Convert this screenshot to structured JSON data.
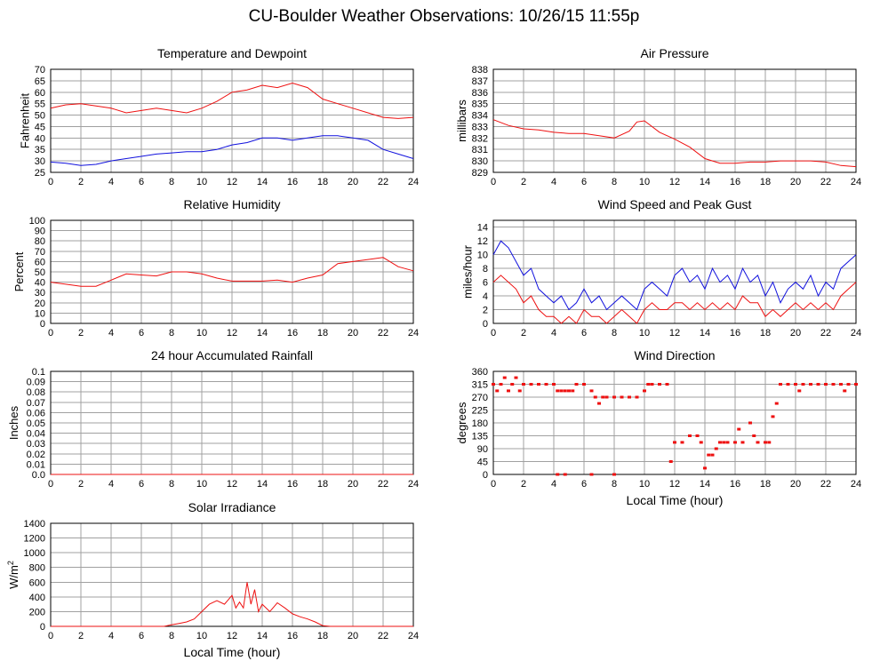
{
  "page_title": "CU-Boulder Weather Observations: 10/26/15 11:55p",
  "colors": {
    "red": "#ee1111",
    "blue": "#1111dd"
  },
  "chart_data": [
    {
      "id": "temp",
      "type": "line",
      "title": "Temperature and Dewpoint",
      "ylabel": "Fahrenheit",
      "xlabel": "",
      "xlim": [
        0,
        24
      ],
      "ylim": [
        25,
        70
      ],
      "xticks": [
        0,
        2,
        4,
        6,
        8,
        10,
        12,
        14,
        16,
        18,
        20,
        22,
        24
      ],
      "yticks": [
        25,
        30,
        35,
        40,
        45,
        50,
        55,
        60,
        65,
        70
      ],
      "tick_labels_x": [
        "0",
        "2",
        "4",
        "6",
        "8",
        "10",
        "12",
        "14",
        "16",
        "18",
        "20",
        "22",
        "24"
      ],
      "tick_labels_y": [
        "25",
        "30",
        "35",
        "40",
        "45",
        "50",
        "55",
        "60",
        "65",
        "70"
      ],
      "grid": true,
      "series": [
        {
          "color": "#ee1111",
          "style": "line",
          "x": [
            0,
            1,
            2,
            3,
            4,
            5,
            6,
            7,
            8,
            9,
            10,
            11,
            12,
            13,
            14,
            15,
            16,
            17,
            18,
            19,
            20,
            21,
            22,
            23,
            24
          ],
          "y": [
            53,
            54.5,
            55,
            54,
            53,
            51,
            52,
            53,
            52,
            51,
            53,
            56,
            60,
            61,
            63,
            62,
            64,
            62,
            57,
            55,
            53,
            51,
            49,
            48.5,
            49
          ]
        },
        {
          "color": "#1111dd",
          "style": "line",
          "x": [
            0,
            1,
            2,
            3,
            4,
            5,
            6,
            7,
            8,
            9,
            10,
            11,
            12,
            13,
            14,
            15,
            16,
            17,
            18,
            19,
            20,
            21,
            22,
            23,
            24
          ],
          "y": [
            29.5,
            29,
            28,
            28.5,
            30,
            31,
            32,
            33,
            33.5,
            34,
            34,
            35,
            37,
            38,
            40,
            40,
            39,
            40,
            41,
            41,
            40,
            39,
            35,
            33,
            31
          ]
        }
      ]
    },
    {
      "id": "pressure",
      "type": "line",
      "title": "Air Pressure",
      "ylabel": "millibars",
      "xlabel": "",
      "xlim": [
        0,
        24
      ],
      "ylim": [
        829,
        838
      ],
      "xticks": [
        0,
        2,
        4,
        6,
        8,
        10,
        12,
        14,
        16,
        18,
        20,
        22,
        24
      ],
      "yticks": [
        829,
        830,
        831,
        832,
        833,
        834,
        835,
        836,
        837,
        838
      ],
      "tick_labels_x": [
        "0",
        "2",
        "4",
        "6",
        "8",
        "10",
        "12",
        "14",
        "16",
        "18",
        "20",
        "22",
        "24"
      ],
      "tick_labels_y": [
        "829",
        "830",
        "831",
        "832",
        "833",
        "834",
        "835",
        "836",
        "837",
        "838"
      ],
      "grid": true,
      "series": [
        {
          "color": "#ee1111",
          "style": "line",
          "x": [
            0,
            1,
            2,
            3,
            4,
            5,
            6,
            7,
            8,
            9,
            9.5,
            10,
            11,
            12,
            13,
            14,
            15,
            16,
            17,
            18,
            19,
            20,
            21,
            22,
            23,
            24
          ],
          "y": [
            833.6,
            833.1,
            832.8,
            832.7,
            832.5,
            832.4,
            832.4,
            832.2,
            832,
            832.6,
            833.4,
            833.5,
            832.5,
            831.9,
            831.2,
            830.2,
            829.8,
            829.8,
            829.9,
            829.9,
            830,
            830,
            830,
            829.9,
            829.6,
            829.5
          ]
        }
      ]
    },
    {
      "id": "humidity",
      "type": "line",
      "title": "Relative Humidity",
      "ylabel": "Percent",
      "xlabel": "",
      "xlim": [
        0,
        24
      ],
      "ylim": [
        0,
        100
      ],
      "xticks": [
        0,
        2,
        4,
        6,
        8,
        10,
        12,
        14,
        16,
        18,
        20,
        22,
        24
      ],
      "yticks": [
        0,
        10,
        20,
        30,
        40,
        50,
        60,
        70,
        80,
        90,
        100
      ],
      "tick_labels_x": [
        "0",
        "2",
        "4",
        "6",
        "8",
        "10",
        "12",
        "14",
        "16",
        "18",
        "20",
        "22",
        "24"
      ],
      "tick_labels_y": [
        "0",
        "10",
        "20",
        "30",
        "40",
        "50",
        "60",
        "70",
        "80",
        "90",
        "100"
      ],
      "grid": true,
      "series": [
        {
          "color": "#ee1111",
          "style": "line",
          "x": [
            0,
            1,
            2,
            3,
            4,
            5,
            6,
            7,
            8,
            9,
            10,
            11,
            12,
            13,
            14,
            15,
            16,
            17,
            18,
            19,
            20,
            21,
            22,
            23,
            24
          ],
          "y": [
            40,
            38,
            36,
            36,
            42,
            48,
            47,
            46,
            50,
            50,
            48,
            44,
            41,
            41,
            41,
            42,
            40,
            44,
            47,
            58,
            60,
            62,
            64,
            55,
            51
          ]
        }
      ]
    },
    {
      "id": "wind",
      "type": "line",
      "title": "Wind Speed and Peak Gust",
      "ylabel": "miles/hour",
      "xlabel": "",
      "xlim": [
        0,
        24
      ],
      "ylim": [
        0,
        15
      ],
      "xticks": [
        0,
        2,
        4,
        6,
        8,
        10,
        12,
        14,
        16,
        18,
        20,
        22,
        24
      ],
      "yticks": [
        0,
        2,
        4,
        6,
        8,
        10,
        12,
        14
      ],
      "tick_labels_x": [
        "0",
        "2",
        "4",
        "6",
        "8",
        "10",
        "12",
        "14",
        "16",
        "18",
        "20",
        "22",
        "24"
      ],
      "tick_labels_y": [
        "0",
        "2",
        "4",
        "6",
        "8",
        "10",
        "12",
        "14"
      ],
      "grid": true,
      "series": [
        {
          "color": "#1111dd",
          "style": "line",
          "x": [
            0,
            0.5,
            1,
            1.5,
            2,
            2.5,
            3,
            3.5,
            4,
            4.5,
            5,
            5.5,
            6,
            6.5,
            7,
            7.5,
            8,
            8.5,
            9,
            9.5,
            10,
            10.5,
            11,
            11.5,
            12,
            12.5,
            13,
            13.5,
            14,
            14.5,
            15,
            15.5,
            16,
            16.5,
            17,
            17.5,
            18,
            18.5,
            19,
            19.5,
            20,
            20.5,
            21,
            21.5,
            22,
            22.5,
            23,
            23.5,
            24
          ],
          "y": [
            10,
            12,
            11,
            9,
            7,
            8,
            5,
            4,
            3,
            4,
            2,
            3,
            5,
            3,
            4,
            2,
            3,
            4,
            3,
            2,
            5,
            6,
            5,
            4,
            7,
            8,
            6,
            7,
            5,
            8,
            6,
            7,
            5,
            8,
            6,
            7,
            4,
            6,
            3,
            5,
            6,
            5,
            7,
            4,
            6,
            5,
            8,
            9,
            10
          ]
        },
        {
          "color": "#ee1111",
          "style": "line",
          "x": [
            0,
            0.5,
            1,
            1.5,
            2,
            2.5,
            3,
            3.5,
            4,
            4.5,
            5,
            5.5,
            6,
            6.5,
            7,
            7.5,
            8,
            8.5,
            9,
            9.5,
            10,
            10.5,
            11,
            11.5,
            12,
            12.5,
            13,
            13.5,
            14,
            14.5,
            15,
            15.5,
            16,
            16.5,
            17,
            17.5,
            18,
            18.5,
            19,
            19.5,
            20,
            20.5,
            21,
            21.5,
            22,
            22.5,
            23,
            23.5,
            24
          ],
          "y": [
            6,
            7,
            6,
            5,
            3,
            4,
            2,
            1,
            1,
            0,
            1,
            0,
            2,
            1,
            1,
            0,
            1,
            2,
            1,
            0,
            2,
            3,
            2,
            2,
            3,
            3,
            2,
            3,
            2,
            3,
            2,
            3,
            2,
            4,
            3,
            3,
            1,
            2,
            1,
            2,
            3,
            2,
            3,
            2,
            3,
            2,
            4,
            5,
            6
          ]
        }
      ]
    },
    {
      "id": "rain",
      "type": "line",
      "title": "24 hour Accumulated Rainfall",
      "ylabel": "Inches",
      "xlabel": "",
      "xlim": [
        0,
        24
      ],
      "ylim": [
        0,
        0.1
      ],
      "xticks": [
        0,
        2,
        4,
        6,
        8,
        10,
        12,
        14,
        16,
        18,
        20,
        22,
        24
      ],
      "yticks": [
        0,
        0.01,
        0.02,
        0.03,
        0.04,
        0.05,
        0.06,
        0.07,
        0.08,
        0.09,
        0.1
      ],
      "tick_labels_x": [
        "0",
        "2",
        "4",
        "6",
        "8",
        "10",
        "12",
        "14",
        "16",
        "18",
        "20",
        "22",
        "24"
      ],
      "tick_labels_y": [
        "0.0",
        "0.01",
        "0.02",
        "0.03",
        "0.04",
        "0.05",
        "0.06",
        "0.07",
        "0.08",
        "0.09",
        "0.1"
      ],
      "grid": true,
      "series": [
        {
          "color": "#ee1111",
          "style": "line",
          "x": [
            0,
            24
          ],
          "y": [
            0,
            0
          ]
        }
      ]
    },
    {
      "id": "direction",
      "type": "scatter",
      "title": "Wind Direction",
      "ylabel": "degrees",
      "xlabel": "Local Time (hour)",
      "xlim": [
        0,
        24
      ],
      "ylim": [
        0,
        360
      ],
      "xticks": [
        0,
        2,
        4,
        6,
        8,
        10,
        12,
        14,
        16,
        18,
        20,
        22,
        24
      ],
      "yticks": [
        0,
        45,
        90,
        135,
        180,
        225,
        270,
        315,
        360
      ],
      "tick_labels_x": [
        "0",
        "2",
        "4",
        "6",
        "8",
        "10",
        "12",
        "14",
        "16",
        "18",
        "20",
        "22",
        "24"
      ],
      "tick_labels_y": [
        "0",
        "45",
        "90",
        "135",
        "180",
        "225",
        "270",
        "315",
        "360"
      ],
      "grid": true,
      "series": [
        {
          "color": "#ee1111",
          "style": "scatter",
          "x": [
            0,
            0.25,
            0.5,
            0.75,
            1,
            1.25,
            1.5,
            1.75,
            2,
            2.5,
            3,
            3.5,
            4,
            4.25,
            4.5,
            4.75,
            5,
            5.25,
            5.5,
            6,
            6.5,
            6.75,
            7,
            7.25,
            7.5,
            8,
            8.5,
            9,
            9.5,
            10,
            10.25,
            10.5,
            11,
            11.5,
            11.75,
            12,
            12.5,
            13,
            13.5,
            13.75,
            14,
            14.25,
            14.5,
            14.75,
            15,
            15.25,
            15.5,
            16,
            16.25,
            16.5,
            17,
            17.25,
            17.5,
            18,
            18.25,
            18.5,
            18.75,
            19,
            19.5,
            20,
            20.25,
            20.5,
            21,
            21.5,
            22,
            22.5,
            23,
            23.25,
            23.5,
            24,
            4.25,
            4.75,
            6.5,
            8
          ],
          "y": [
            315,
            292,
            315,
            338,
            292,
            315,
            338,
            292,
            315,
            315,
            315,
            315,
            315,
            292,
            292,
            292,
            292,
            292,
            315,
            315,
            292,
            270,
            248,
            270,
            270,
            270,
            270,
            270,
            270,
            292,
            315,
            315,
            315,
            315,
            45,
            112,
            112,
            135,
            135,
            112,
            22,
            68,
            68,
            90,
            112,
            112,
            112,
            112,
            158,
            112,
            180,
            135,
            112,
            112,
            112,
            202,
            248,
            315,
            315,
            315,
            292,
            315,
            315,
            315,
            315,
            315,
            315,
            292,
            315,
            315,
            0,
            0,
            0,
            0
          ]
        }
      ]
    },
    {
      "id": "solar",
      "type": "line",
      "title": "Solar Irradiance",
      "ylabel": "W/m",
      "ylabel_sup": "2",
      "xlabel": "Local Time (hour)",
      "xlim": [
        0,
        24
      ],
      "ylim": [
        0,
        1400
      ],
      "xticks": [
        0,
        2,
        4,
        6,
        8,
        10,
        12,
        14,
        16,
        18,
        20,
        22,
        24
      ],
      "yticks": [
        0,
        200,
        400,
        600,
        800,
        1000,
        1200,
        1400
      ],
      "tick_labels_x": [
        "0",
        "2",
        "4",
        "6",
        "8",
        "10",
        "12",
        "14",
        "16",
        "18",
        "20",
        "22",
        "24"
      ],
      "tick_labels_y": [
        "0",
        "200",
        "400",
        "600",
        "800",
        "1000",
        "1200",
        "1400"
      ],
      "grid": true,
      "series": [
        {
          "color": "#ee1111",
          "style": "line",
          "x": [
            0,
            7.5,
            8,
            8.5,
            9,
            9.5,
            10,
            10.5,
            11,
            11.5,
            12,
            12.25,
            12.5,
            12.75,
            13,
            13.25,
            13.5,
            13.75,
            14,
            14.5,
            15,
            15.5,
            16,
            16.5,
            17,
            17.5,
            18,
            18.5,
            24
          ],
          "y": [
            0,
            0,
            20,
            40,
            60,
            100,
            200,
            300,
            350,
            300,
            420,
            250,
            330,
            250,
            600,
            300,
            500,
            200,
            300,
            200,
            320,
            250,
            170,
            130,
            100,
            60,
            10,
            0,
            0
          ]
        }
      ]
    }
  ]
}
